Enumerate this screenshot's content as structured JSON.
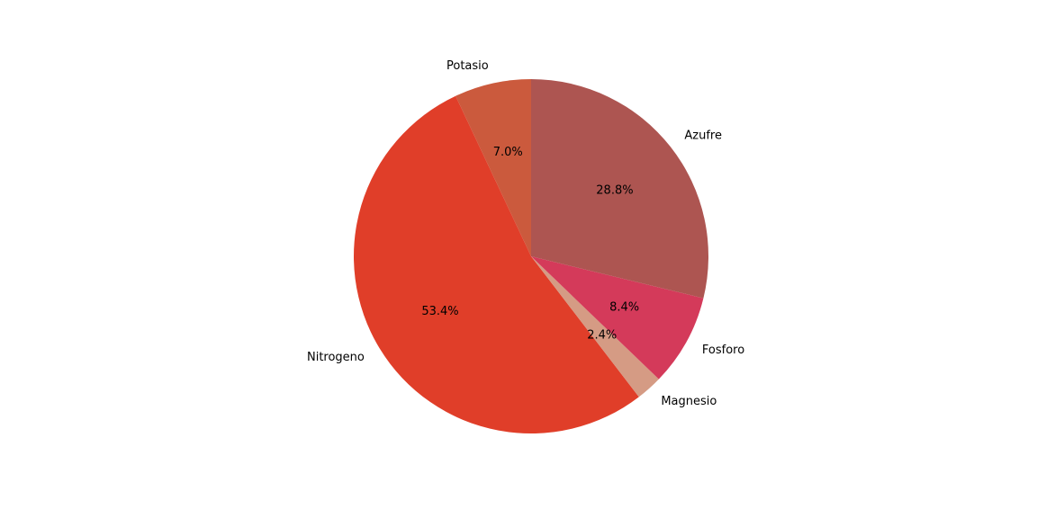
{
  "chart_data": {
    "type": "pie",
    "start_angle_deg": 90,
    "direction": "counterclockwise",
    "slices": [
      {
        "label": "Potasio",
        "value": 7.0,
        "pct_label": "7.0%",
        "color": "#cb5a3d"
      },
      {
        "label": "Nitrogeno",
        "value": 53.4,
        "pct_label": "53.4%",
        "color": "#e03e29"
      },
      {
        "label": "Magnesio",
        "value": 2.4,
        "pct_label": "2.4%",
        "color": "#d59b84"
      },
      {
        "label": "Fosforo",
        "value": 8.4,
        "pct_label": "8.4%",
        "color": "#d43a5a"
      },
      {
        "label": "Azufre",
        "value": 28.8,
        "pct_label": "28.8%",
        "color": "#ad5551"
      }
    ]
  }
}
